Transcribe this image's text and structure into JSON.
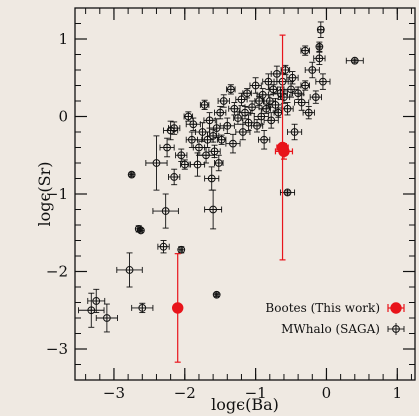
{
  "chart_data": {
    "type": "scatter",
    "xlabel": "logϵ(Ba)",
    "ylabel": "logϵ(Sr)",
    "xlim": [
      -3.55,
      1.25
    ],
    "ylim": [
      -3.4,
      1.4
    ],
    "xticks": [
      -3,
      -2,
      -1,
      0,
      1
    ],
    "yticks": [
      1,
      0,
      -1,
      -2,
      -3
    ],
    "xtick_labels": [
      "−3",
      "−2",
      "−1",
      "0",
      "1"
    ],
    "ytick_labels": [
      "1",
      "0",
      "−1",
      "−2",
      "−3"
    ],
    "legend_position": "bottom-right",
    "series": [
      {
        "name": "Bootes (This work)",
        "color": "#e8141b",
        "marker": "filled-circle",
        "points": [
          {
            "x": -2.1,
            "y": -2.47,
            "xerr": 0,
            "yerr": 0.7
          },
          {
            "x": -0.62,
            "y": -0.4,
            "xerr": 0.08,
            "yerr": 1.45
          },
          {
            "x": -0.6,
            "y": -0.45,
            "xerr": 0.12,
            "yerr": 0.1
          }
        ]
      },
      {
        "name": "MWhalo (SAGA)",
        "color": "#111111",
        "marker": "open-circle-cross",
        "points": [
          {
            "x": -3.32,
            "y": -2.5,
            "xerr": 0.18,
            "yerr": 0.22
          },
          {
            "x": -3.25,
            "y": -2.38,
            "xerr": 0.12,
            "yerr": 0.15
          },
          {
            "x": -3.1,
            "y": -2.6,
            "xerr": 0.15,
            "yerr": 0.18
          },
          {
            "x": -2.78,
            "y": -1.98,
            "xerr": 0.18,
            "yerr": 0.22
          },
          {
            "x": -2.6,
            "y": -2.47,
            "xerr": 0.15,
            "yerr": 0.06
          },
          {
            "x": -2.65,
            "y": -1.45,
            "xerr": 0.02,
            "yerr": 0.04
          },
          {
            "x": -2.62,
            "y": -1.47,
            "xerr": 0.02,
            "yerr": 0.02
          },
          {
            "x": -2.75,
            "y": -0.75,
            "xerr": 0.02,
            "yerr": 0.02
          },
          {
            "x": -2.27,
            "y": -1.22,
            "xerr": 0.18,
            "yerr": 0.22
          },
          {
            "x": -2.3,
            "y": -1.68,
            "xerr": 0.08,
            "yerr": 0.08
          },
          {
            "x": -2.4,
            "y": -0.6,
            "xerr": 0.15,
            "yerr": 0.35
          },
          {
            "x": -2.25,
            "y": -0.4,
            "xerr": 0.1,
            "yerr": 0.12
          },
          {
            "x": -2.15,
            "y": -0.78,
            "xerr": 0.08,
            "yerr": 0.1
          },
          {
            "x": -2.05,
            "y": -0.5,
            "xerr": 0.08,
            "yerr": 0.08
          },
          {
            "x": -2.0,
            "y": -0.62,
            "xerr": 0.06,
            "yerr": 0.06
          },
          {
            "x": -2.2,
            "y": -0.18,
            "xerr": 0.1,
            "yerr": 0.12
          },
          {
            "x": -2.15,
            "y": -0.15,
            "xerr": 0.08,
            "yerr": 0.08
          },
          {
            "x": -2.05,
            "y": -1.72,
            "xerr": 0.02,
            "yerr": 0.04
          },
          {
            "x": -1.95,
            "y": 0.0,
            "xerr": 0.06,
            "yerr": 0.06
          },
          {
            "x": -1.9,
            "y": -0.3,
            "xerr": 0.08,
            "yerr": 0.1
          },
          {
            "x": -1.88,
            "y": -0.1,
            "xerr": 0.1,
            "yerr": 0.08
          },
          {
            "x": -1.82,
            "y": -0.62,
            "xerr": 0.1,
            "yerr": 0.15
          },
          {
            "x": -1.8,
            "y": -0.4,
            "xerr": 0.08,
            "yerr": 0.1
          },
          {
            "x": -1.75,
            "y": -0.2,
            "xerr": 0.1,
            "yerr": 0.12
          },
          {
            "x": -1.72,
            "y": 0.15,
            "xerr": 0.06,
            "yerr": 0.06
          },
          {
            "x": -1.7,
            "y": -0.5,
            "xerr": 0.12,
            "yerr": 0.1
          },
          {
            "x": -1.68,
            "y": -0.3,
            "xerr": 0.08,
            "yerr": 0.1
          },
          {
            "x": -1.65,
            "y": -0.05,
            "xerr": 0.08,
            "yerr": 0.1
          },
          {
            "x": -1.62,
            "y": -0.8,
            "xerr": 0.1,
            "yerr": 0.15
          },
          {
            "x": -1.6,
            "y": -0.25,
            "xerr": 0.08,
            "yerr": 0.08
          },
          {
            "x": -1.58,
            "y": -0.45,
            "xerr": 0.08,
            "yerr": 0.08
          },
          {
            "x": -1.55,
            "y": -0.15,
            "xerr": 0.1,
            "yerr": 0.12
          },
          {
            "x": -1.52,
            "y": -0.6,
            "xerr": 0.06,
            "yerr": 0.1
          },
          {
            "x": -1.5,
            "y": 0.05,
            "xerr": 0.08,
            "yerr": 0.08
          },
          {
            "x": -1.48,
            "y": -0.3,
            "xerr": 0.06,
            "yerr": 0.06
          },
          {
            "x": -1.6,
            "y": -1.2,
            "xerr": 0.12,
            "yerr": 0.25
          },
          {
            "x": -1.55,
            "y": -2.3,
            "xerr": 0.02,
            "yerr": 0.02
          },
          {
            "x": -1.45,
            "y": 0.2,
            "xerr": 0.08,
            "yerr": 0.08
          },
          {
            "x": -1.4,
            "y": -0.12,
            "xerr": 0.1,
            "yerr": 0.1
          },
          {
            "x": -1.35,
            "y": 0.35,
            "xerr": 0.06,
            "yerr": 0.06
          },
          {
            "x": -1.32,
            "y": -0.35,
            "xerr": 0.1,
            "yerr": 0.12
          },
          {
            "x": -1.3,
            "y": 0.1,
            "xerr": 0.08,
            "yerr": 0.08
          },
          {
            "x": -1.25,
            "y": -0.02,
            "xerr": 0.06,
            "yerr": 0.08
          },
          {
            "x": -1.2,
            "y": 0.22,
            "xerr": 0.08,
            "yerr": 0.08
          },
          {
            "x": -1.18,
            "y": -0.2,
            "xerr": 0.1,
            "yerr": 0.1
          },
          {
            "x": -1.15,
            "y": 0.05,
            "xerr": 0.08,
            "yerr": 0.08
          },
          {
            "x": -1.12,
            "y": 0.3,
            "xerr": 0.06,
            "yerr": 0.06
          },
          {
            "x": -1.1,
            "y": -0.08,
            "xerr": 0.08,
            "yerr": 0.1
          },
          {
            "x": -1.05,
            "y": 0.12,
            "xerr": 0.1,
            "yerr": 0.08
          },
          {
            "x": -1.0,
            "y": 0.4,
            "xerr": 0.08,
            "yerr": 0.1
          },
          {
            "x": -0.98,
            "y": -0.12,
            "xerr": 0.08,
            "yerr": 0.08
          },
          {
            "x": -0.95,
            "y": 0.2,
            "xerr": 0.06,
            "yerr": 0.06
          },
          {
            "x": -0.92,
            "y": 0.0,
            "xerr": 0.1,
            "yerr": 0.1
          },
          {
            "x": -0.9,
            "y": 0.28,
            "xerr": 0.08,
            "yerr": 0.08
          },
          {
            "x": -0.88,
            "y": -0.3,
            "xerr": 0.08,
            "yerr": 0.12
          },
          {
            "x": -0.85,
            "y": 0.1,
            "xerr": 0.06,
            "yerr": 0.06
          },
          {
            "x": -0.82,
            "y": 0.45,
            "xerr": 0.08,
            "yerr": 0.1
          },
          {
            "x": -0.8,
            "y": 0.2,
            "xerr": 0.08,
            "yerr": 0.08
          },
          {
            "x": -0.78,
            "y": -0.05,
            "xerr": 0.1,
            "yerr": 0.1
          },
          {
            "x": -0.75,
            "y": 0.35,
            "xerr": 0.06,
            "yerr": 0.06
          },
          {
            "x": -0.72,
            "y": 0.15,
            "xerr": 0.1,
            "yerr": 0.08
          },
          {
            "x": -0.7,
            "y": 0.55,
            "xerr": 0.08,
            "yerr": 0.1
          },
          {
            "x": -0.68,
            "y": 0.05,
            "xerr": 0.06,
            "yerr": 0.06
          },
          {
            "x": -0.65,
            "y": 0.3,
            "xerr": 0.1,
            "yerr": 0.08
          },
          {
            "x": -0.62,
            "y": 0.45,
            "xerr": 0.08,
            "yerr": 0.1
          },
          {
            "x": -0.6,
            "y": 0.25,
            "xerr": 0.08,
            "yerr": 0.08
          },
          {
            "x": -0.58,
            "y": 0.6,
            "xerr": 0.06,
            "yerr": 0.06
          },
          {
            "x": -0.55,
            "y": 0.1,
            "xerr": 0.08,
            "yerr": 0.08
          },
          {
            "x": -0.5,
            "y": 0.35,
            "xerr": 0.1,
            "yerr": 0.1
          },
          {
            "x": -0.48,
            "y": 0.5,
            "xerr": 0.08,
            "yerr": 0.08
          },
          {
            "x": -0.45,
            "y": -0.2,
            "xerr": 0.1,
            "yerr": 0.1
          },
          {
            "x": -0.4,
            "y": 0.3,
            "xerr": 0.08,
            "yerr": 0.08
          },
          {
            "x": -0.35,
            "y": 0.18,
            "xerr": 0.1,
            "yerr": 0.1
          },
          {
            "x": -0.3,
            "y": 0.4,
            "xerr": 0.06,
            "yerr": 0.06
          },
          {
            "x": -0.25,
            "y": 0.05,
            "xerr": 0.08,
            "yerr": 0.08
          },
          {
            "x": -0.2,
            "y": 0.6,
            "xerr": 0.1,
            "yerr": 0.1
          },
          {
            "x": -0.15,
            "y": 0.25,
            "xerr": 0.08,
            "yerr": 0.08
          },
          {
            "x": -0.1,
            "y": 0.75,
            "xerr": 0.08,
            "yerr": 0.08
          },
          {
            "x": -0.05,
            "y": 0.45,
            "xerr": 0.1,
            "yerr": 0.1
          },
          {
            "x": -0.1,
            "y": 0.9,
            "xerr": 0.02,
            "yerr": 0.06
          },
          {
            "x": -0.08,
            "y": 1.12,
            "xerr": 0.04,
            "yerr": 0.1
          },
          {
            "x": -0.55,
            "y": -0.98,
            "xerr": 0.1,
            "yerr": 0.02
          },
          {
            "x": 0.4,
            "y": 0.72,
            "xerr": 0.12,
            "yerr": 0.02
          },
          {
            "x": -0.3,
            "y": 0.85,
            "xerr": 0.06,
            "yerr": 0.06
          }
        ]
      }
    ]
  }
}
